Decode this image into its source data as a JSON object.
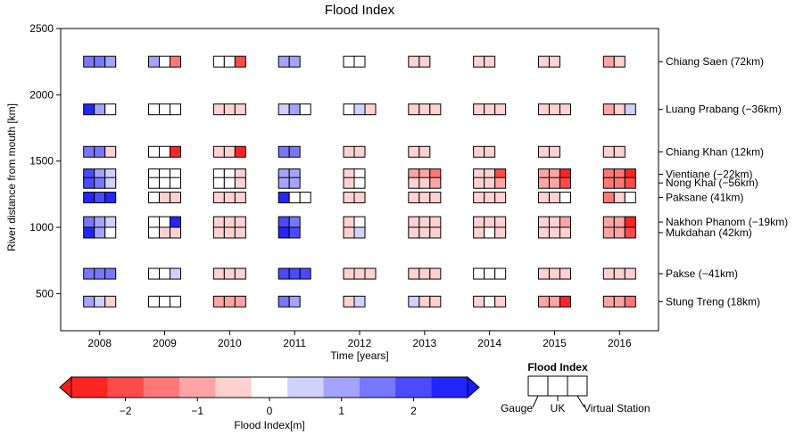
{
  "chart_data": {
    "type": "heatmap",
    "title": "Flood Index",
    "xlabel": "Time [years]",
    "ylabel": "River distance from mouth [km]",
    "x": [
      2008,
      2009,
      2010,
      2011,
      2012,
      2013,
      2014,
      2015,
      2016
    ],
    "x_ticks": [
      "2008",
      "2009",
      "2010",
      "2011",
      "2012",
      "2013",
      "2014",
      "2015",
      "2016"
    ],
    "xlim": [
      2007.4,
      2016.6
    ],
    "ylim": [
      220,
      2500
    ],
    "y_ticks": [
      500,
      1000,
      1500,
      2000,
      2500
    ],
    "stations": [
      {
        "label": "Chiang Saen (72km)",
        "y": 2250,
        "values": [
          [
            1.6,
            1.3,
            0.9
          ],
          [
            0.8,
            0,
            -1.5
          ],
          [
            0,
            0,
            -2.2
          ],
          [
            1.2,
            1.2,
            null
          ],
          [
            0,
            0,
            null
          ],
          [
            -0.7,
            -0.7,
            null
          ],
          [
            -0.6,
            -0.6,
            null
          ],
          [
            -0.6,
            -0.6,
            null
          ],
          [
            -0.9,
            -0.6,
            null
          ]
        ]
      },
      {
        "label": "Luang Prabang (−36km)",
        "y": 1890,
        "values": [
          [
            2.6,
            1.0,
            0
          ],
          [
            0,
            0,
            0
          ],
          [
            -0.6,
            -0.6,
            -0.6
          ],
          [
            0.6,
            0.8,
            0
          ],
          [
            0,
            0.5,
            -0.3
          ],
          [
            -0.5,
            -0.5,
            -0.5
          ],
          [
            -0.5,
            -0.5,
            -0.5
          ],
          [
            -0.5,
            -0.5,
            -0.5
          ],
          [
            -0.9,
            -0.6,
            0.6
          ]
        ]
      },
      {
        "label": "Chiang Khan (12km)",
        "y": 1570,
        "values": [
          [
            1.6,
            1.3,
            -0.7
          ],
          [
            0,
            0,
            -2.6
          ],
          [
            -0.6,
            -0.6,
            -2.4
          ],
          [
            1.3,
            1.3,
            null
          ],
          [
            -0.5,
            -0.5,
            null
          ],
          [
            -0.5,
            -0.5,
            null
          ],
          [
            -0.4,
            -0.4,
            null
          ],
          [
            -0.5,
            -0.5,
            null
          ],
          [
            -0.5,
            -0.5,
            null
          ]
        ]
      },
      {
        "label": "Vientiane (−22km)",
        "y": 1400,
        "values": [
          [
            2.0,
            0.8,
            0.5
          ],
          [
            0,
            0,
            0
          ],
          [
            0,
            0,
            -0.6
          ],
          [
            0.9,
            0.9,
            null
          ],
          [
            -0.3,
            0,
            null
          ],
          [
            -0.8,
            -0.8,
            -1.4
          ],
          [
            -0.6,
            -0.6,
            -1.8
          ],
          [
            -1.2,
            -1.2,
            -2.4
          ],
          [
            -1.3,
            -1.3,
            -2.6
          ]
        ]
      },
      {
        "label": "Nong Khai (−56km)",
        "y": 1335,
        "values": [
          [
            2.2,
            1.5,
            0.4
          ],
          [
            0,
            0,
            0
          ],
          [
            0,
            0,
            -0.5
          ],
          [
            1.0,
            1.0,
            null
          ],
          [
            -0.3,
            0,
            null
          ],
          [
            -0.7,
            -0.7,
            -1.0
          ],
          [
            -0.6,
            -0.6,
            -1.2
          ],
          [
            -1.2,
            -1.2,
            -1.8
          ],
          [
            -1.3,
            -1.3,
            -2.0
          ]
        ]
      },
      {
        "label": "Paksane (41km)",
        "y": 1225,
        "values": [
          [
            2.3,
            2.0,
            2.6
          ],
          [
            0,
            -0.5,
            -0.5
          ],
          [
            -0.5,
            -0.5,
            -0.5
          ],
          [
            2.3,
            0,
            0
          ],
          [
            -0.4,
            -0.4,
            null
          ],
          [
            -0.4,
            -0.4,
            -0.4
          ],
          [
            -0.4,
            -0.4,
            -0.4
          ],
          [
            -0.6,
            -0.6,
            0
          ],
          [
            -1.3,
            -0.4,
            0
          ]
        ]
      },
      {
        "label": "Nakhon Phanom (−19km)",
        "y": 1040,
        "values": [
          [
            1.5,
            0.8,
            0.6
          ],
          [
            0,
            0,
            2.9
          ],
          [
            -0.6,
            -0.6,
            -0.6
          ],
          [
            2.0,
            1.6,
            null
          ],
          [
            -0.4,
            0,
            null
          ],
          [
            -0.6,
            -0.6,
            -0.6
          ],
          [
            -0.6,
            -0.6,
            -0.6
          ],
          [
            -0.6,
            -0.6,
            -0.8
          ],
          [
            -1.2,
            -1.2,
            -2.6
          ]
        ]
      },
      {
        "label": "Mukdahan (42km)",
        "y": 960,
        "values": [
          [
            2.6,
            0.9,
            0
          ],
          [
            0,
            -0.4,
            -0.4
          ],
          [
            -0.5,
            -0.5,
            -0.5
          ],
          [
            2.6,
            1.8,
            null
          ],
          [
            -0.3,
            0.4,
            null
          ],
          [
            -0.5,
            -0.5,
            -0.5
          ],
          [
            -0.5,
            0,
            -0.5
          ],
          [
            -0.6,
            -0.6,
            -0.6
          ],
          [
            -0.8,
            -0.8,
            -2.0
          ]
        ]
      },
      {
        "label": "Pakse (−41km)",
        "y": 650,
        "values": [
          [
            1.6,
            1.3,
            1.3
          ],
          [
            0,
            0,
            0.5
          ],
          [
            -0.5,
            -0.5,
            -0.5
          ],
          [
            2.2,
            1.8,
            1.8
          ],
          [
            -0.4,
            -0.4,
            -0.4
          ],
          [
            -0.4,
            -0.4,
            -0.4
          ],
          [
            0,
            0,
            0
          ],
          [
            -0.4,
            -0.4,
            -0.4
          ],
          [
            -0.5,
            -0.5,
            -0.5
          ]
        ]
      },
      {
        "label": "Stung Treng (18km)",
        "y": 440,
        "values": [
          [
            1.0,
            0.5,
            -0.5
          ],
          [
            0,
            0,
            0
          ],
          [
            -0.9,
            -0.9,
            -0.9
          ],
          [
            1.5,
            1.0,
            null
          ],
          [
            -0.4,
            0.6,
            null
          ],
          [
            0.5,
            -0.4,
            -0.4
          ],
          [
            -0.5,
            0,
            -0.5
          ],
          [
            -1.0,
            -1.0,
            -2.4
          ],
          [
            -0.9,
            -0.9,
            -1.6
          ]
        ]
      }
    ],
    "colorbar": {
      "label": "Flood Index[m]",
      "range": [
        -2.75,
        2.75
      ],
      "ticks": [
        -2,
        -1,
        0,
        1,
        2
      ],
      "tick_labels": [
        "−2",
        "−1",
        "0",
        "1",
        "2"
      ],
      "bins": 11,
      "colors": [
        "#ff2424",
        "#ff4a4a",
        "#ff7777",
        "#ffa4a4",
        "#ffd1d1",
        "#ffffff",
        "#d1d1ff",
        "#a4a4ff",
        "#7777ff",
        "#4a4aff",
        "#2424ff"
      ],
      "extend_colors": [
        "#ff1a1a",
        "#1a1aff"
      ]
    },
    "legend": {
      "title": "Flood Index",
      "labels": [
        "Gauge",
        "UK",
        "Virtual Station"
      ]
    }
  }
}
